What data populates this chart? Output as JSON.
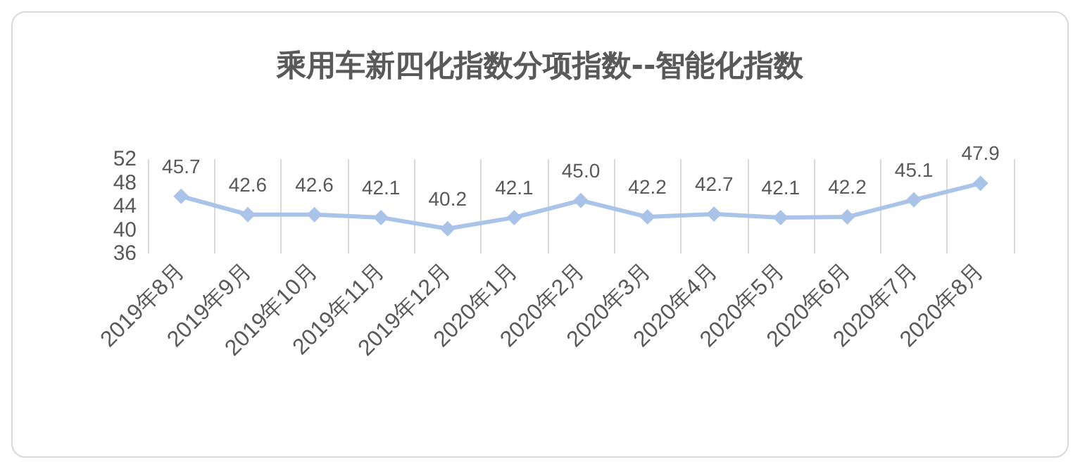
{
  "chart_data": {
    "type": "line",
    "title": "乘用车新四化指数分项指数--智能化指数",
    "categories": [
      "2019年8月",
      "2019年9月",
      "2019年10月",
      "2019年11月",
      "2019年12月",
      "2020年1月",
      "2020年2月",
      "2020年3月",
      "2020年4月",
      "2020年5月",
      "2020年6月",
      "2020年7月",
      "2020年8月"
    ],
    "values": [
      45.7,
      42.6,
      42.6,
      42.1,
      40.2,
      42.1,
      45.0,
      42.2,
      42.7,
      42.1,
      42.2,
      45.1,
      47.9
    ],
    "value_labels": [
      "45.7",
      "42.6",
      "42.6",
      "42.1",
      "40.2",
      "42.1",
      "45.0",
      "42.2",
      "42.7",
      "42.1",
      "42.2",
      "45.1",
      "47.9"
    ],
    "color": "#a9c4e8",
    "ylim": [
      36,
      52
    ],
    "yticks": [
      36,
      40,
      44,
      48,
      52
    ],
    "grid": "x",
    "marker": "diamond",
    "line_style": "solid"
  }
}
